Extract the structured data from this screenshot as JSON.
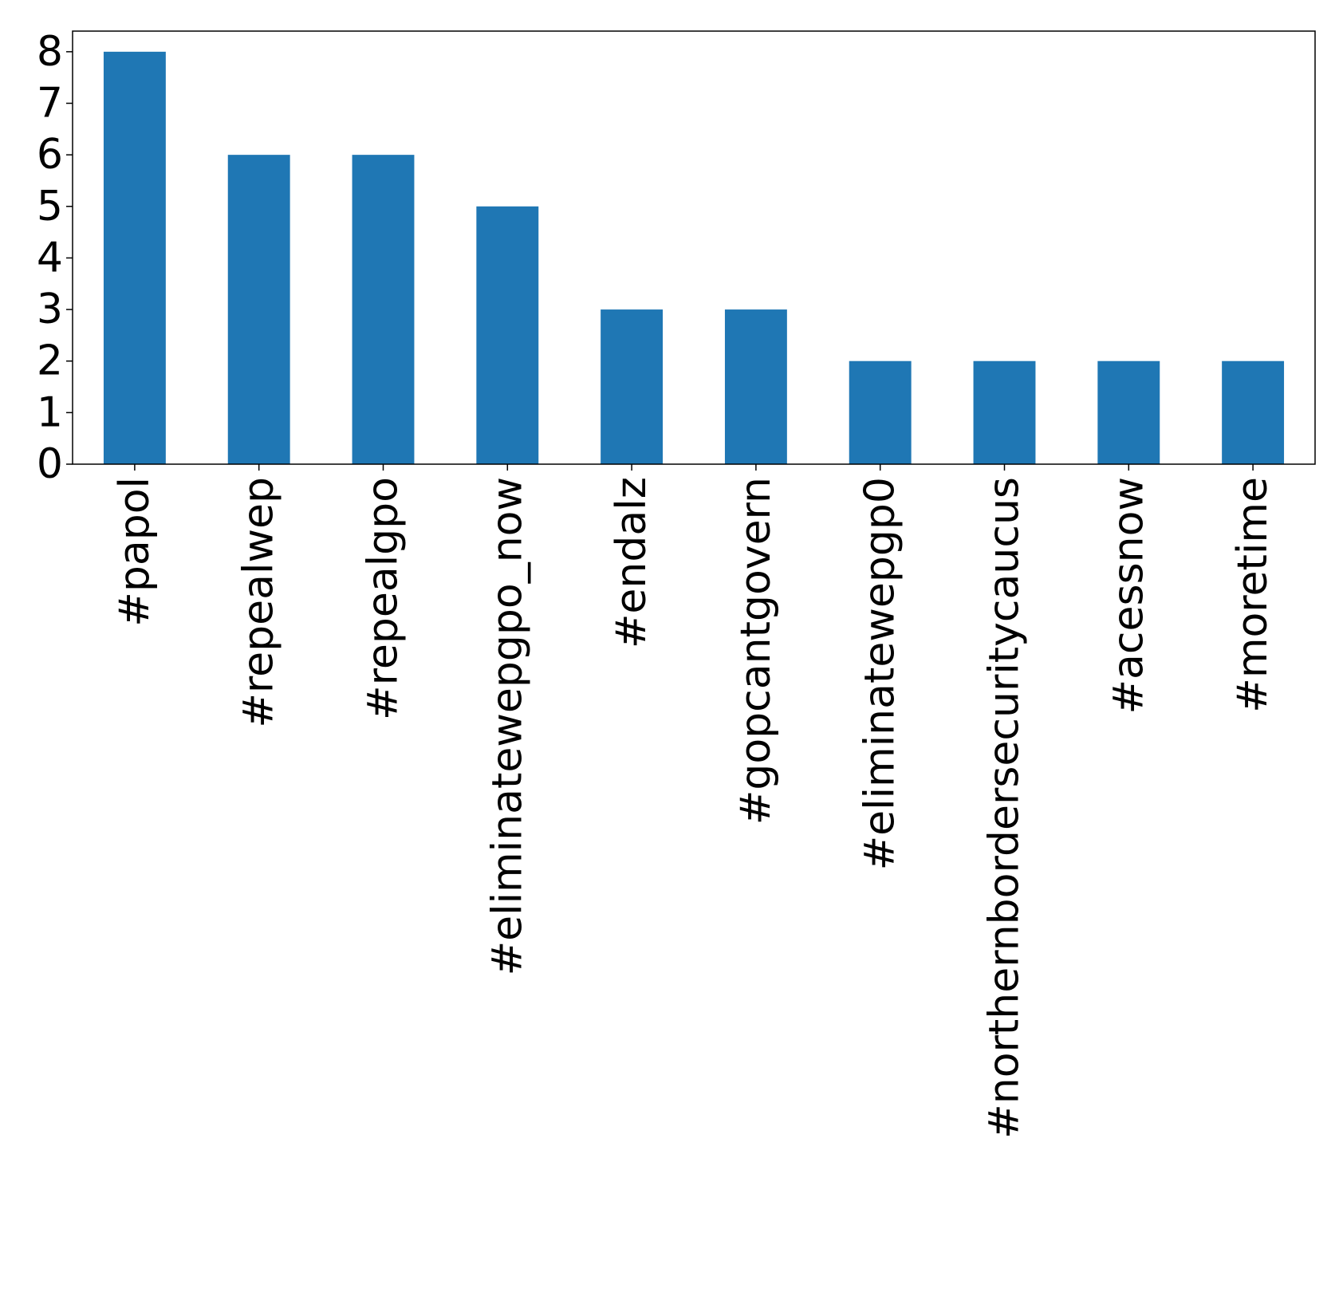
{
  "chart_data": {
    "type": "bar",
    "categories": [
      "#papol",
      "#repealwep",
      "#repealgpo",
      "#eliminatewepgpo_now",
      "#endalz",
      "#gopcantgovern",
      "#eliminatewepgp0",
      "#northernbordersecuritycaucus",
      "#acessnow",
      "#moretime"
    ],
    "values": [
      8,
      6,
      6,
      5,
      3,
      3,
      2,
      2,
      2,
      2
    ],
    "title": "",
    "xlabel": "",
    "ylabel": "",
    "ylim": [
      0,
      8.4
    ],
    "yticks": [
      0,
      1,
      2,
      3,
      4,
      5,
      6,
      7,
      8
    ],
    "bar_color": "#1f77b4",
    "grid": false,
    "legend": "none"
  }
}
